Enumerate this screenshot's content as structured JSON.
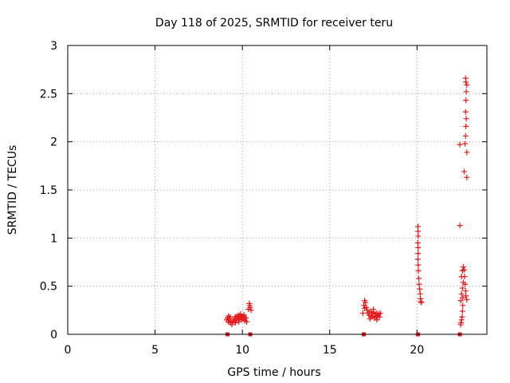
{
  "chart_data": {
    "type": "scatter",
    "title": "Day 118 of 2025, SRMTID for receiver teru",
    "xlabel": "GPS time / hours",
    "ylabel": "SRMTID / TECUs",
    "xlim": [
      0,
      24
    ],
    "ylim": [
      0,
      3
    ],
    "xticks": [
      0,
      5,
      10,
      15,
      20
    ],
    "yticks": [
      0,
      0.5,
      1,
      1.5,
      2,
      2.5,
      3
    ],
    "xtick_labels": [
      "0",
      "5",
      "10",
      "15",
      "20"
    ],
    "ytick_labels": [
      "0",
      "0.5",
      "1",
      "1.5",
      "2",
      "2.5",
      "3"
    ],
    "grid": true,
    "legend": "none",
    "color": "#e41a1c",
    "series": [
      {
        "marker": "plus",
        "points": [
          [
            9.1,
            0.15
          ],
          [
            9.15,
            0.17
          ],
          [
            9.2,
            0.13
          ],
          [
            9.25,
            0.16
          ],
          [
            9.3,
            0.12
          ],
          [
            9.35,
            0.14
          ],
          [
            9.4,
            0.1
          ],
          [
            9.45,
            0.13
          ],
          [
            9.5,
            0.16
          ],
          [
            9.55,
            0.14
          ],
          [
            9.6,
            0.18
          ],
          [
            9.65,
            0.15
          ],
          [
            9.7,
            0.19
          ],
          [
            9.75,
            0.17
          ],
          [
            9.8,
            0.2
          ],
          [
            9.85,
            0.16
          ],
          [
            9.9,
            0.18
          ],
          [
            9.95,
            0.15
          ],
          [
            10.0,
            0.19
          ],
          [
            10.05,
            0.16
          ],
          [
            10.1,
            0.18
          ],
          [
            10.15,
            0.14
          ],
          [
            10.2,
            0.17
          ],
          [
            10.25,
            0.13
          ],
          [
            9.3,
            0.18
          ],
          [
            9.6,
            0.12
          ],
          [
            9.9,
            0.21
          ],
          [
            10.1,
            0.2
          ],
          [
            9.2,
            0.19
          ],
          [
            9.8,
            0.13
          ],
          [
            10.35,
            0.26
          ],
          [
            10.4,
            0.32
          ],
          [
            10.45,
            0.28
          ],
          [
            10.5,
            0.25
          ],
          [
            10.42,
            0.3
          ],
          [
            16.9,
            0.22
          ],
          [
            16.95,
            0.3
          ],
          [
            17.0,
            0.35
          ],
          [
            17.05,
            0.33
          ],
          [
            17.1,
            0.28
          ],
          [
            17.15,
            0.25
          ],
          [
            17.2,
            0.22
          ],
          [
            17.25,
            0.2
          ],
          [
            17.3,
            0.24
          ],
          [
            17.35,
            0.18
          ],
          [
            17.4,
            0.22
          ],
          [
            17.45,
            0.19
          ],
          [
            17.5,
            0.23
          ],
          [
            17.55,
            0.17
          ],
          [
            17.6,
            0.21
          ],
          [
            17.65,
            0.18
          ],
          [
            17.7,
            0.22
          ],
          [
            17.75,
            0.19
          ],
          [
            17.8,
            0.21
          ],
          [
            17.85,
            0.18
          ],
          [
            17.9,
            0.22
          ],
          [
            17.0,
            0.27
          ],
          [
            17.3,
            0.16
          ],
          [
            17.5,
            0.26
          ],
          [
            17.7,
            0.15
          ],
          [
            20.05,
            1.12
          ],
          [
            20.06,
            1.07
          ],
          [
            20.07,
            1.02
          ],
          [
            20.05,
            0.95
          ],
          [
            20.07,
            0.9
          ],
          [
            20.06,
            0.84
          ],
          [
            20.05,
            0.78
          ],
          [
            20.07,
            0.72
          ],
          [
            20.08,
            0.66
          ],
          [
            20.1,
            0.58
          ],
          [
            20.12,
            0.52
          ],
          [
            20.15,
            0.47
          ],
          [
            20.18,
            0.42
          ],
          [
            20.2,
            0.37
          ],
          [
            20.22,
            0.34
          ],
          [
            20.25,
            0.33
          ],
          [
            22.45,
            1.97
          ],
          [
            22.45,
            1.13
          ],
          [
            22.5,
            0.1
          ],
          [
            22.52,
            0.12
          ],
          [
            22.55,
            0.15
          ],
          [
            22.58,
            0.18
          ],
          [
            22.6,
            0.24
          ],
          [
            22.62,
            0.3
          ],
          [
            22.5,
            0.35
          ],
          [
            22.55,
            0.42
          ],
          [
            22.6,
            0.48
          ],
          [
            22.65,
            0.54
          ],
          [
            22.55,
            0.6
          ],
          [
            22.6,
            0.66
          ],
          [
            22.65,
            0.7
          ],
          [
            22.7,
            0.67
          ],
          [
            22.72,
            0.6
          ],
          [
            22.75,
            0.52
          ],
          [
            22.78,
            0.45
          ],
          [
            22.8,
            0.4
          ],
          [
            22.85,
            0.36
          ],
          [
            22.62,
            0.38
          ],
          [
            22.7,
            1.69
          ],
          [
            22.75,
            1.98
          ],
          [
            22.78,
            2.06
          ],
          [
            22.8,
            2.16
          ],
          [
            22.82,
            2.24
          ],
          [
            22.78,
            2.31
          ],
          [
            22.8,
            2.43
          ],
          [
            22.82,
            2.52
          ],
          [
            22.85,
            2.59
          ],
          [
            22.8,
            2.62
          ],
          [
            22.78,
            2.66
          ],
          [
            22.85,
            1.89
          ],
          [
            22.85,
            1.63
          ]
        ]
      },
      {
        "marker": "square",
        "points": [
          [
            9.15,
            0.0
          ],
          [
            10.45,
            0.0
          ],
          [
            16.95,
            0.0
          ],
          [
            20.05,
            0.0
          ],
          [
            22.45,
            0.0
          ]
        ]
      }
    ]
  }
}
